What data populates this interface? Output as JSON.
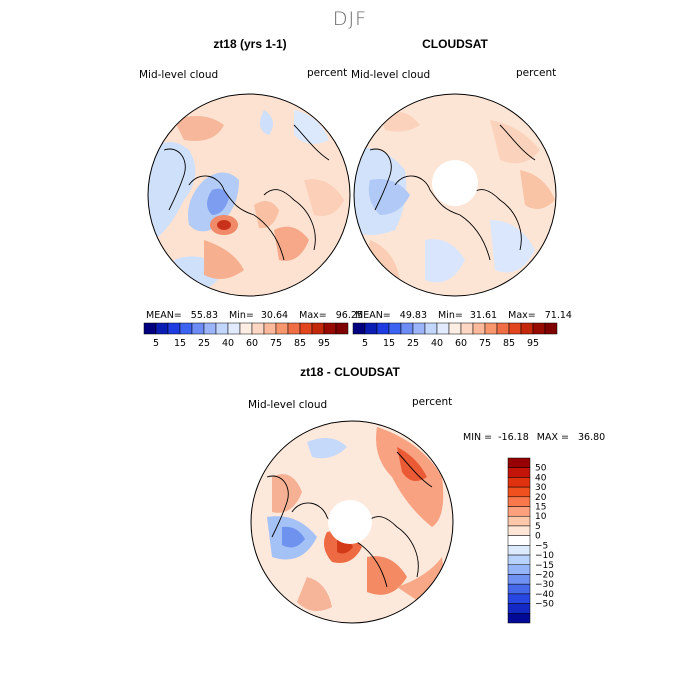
{
  "season_title": "DJF",
  "panels": [
    {
      "title": "zt18 (yrs 1-1)",
      "variable": "Mid-level cloud",
      "units": "percent",
      "stats": {
        "mean_label": "MEAN=",
        "mean": "55.83",
        "min_label": "Min=",
        "min": "30.64",
        "max_label": "Max=",
        "max": "96.25"
      }
    },
    {
      "title": "CLOUDSAT",
      "variable": "Mid-level cloud",
      "units": "percent",
      "stats": {
        "mean_label": "MEAN=",
        "mean": "49.83",
        "min_label": "Min=",
        "min": "31.61",
        "max_label": "Max=",
        "max": "71.14"
      }
    }
  ],
  "abs_colorbar": {
    "colors": [
      "#00007f",
      "#0a1eb4",
      "#1e3ce1",
      "#3c64f0",
      "#6e8cf5",
      "#9bb4fa",
      "#c3d7fc",
      "#e1ebfd",
      "#fdeee4",
      "#fdd7c3",
      "#fcb99b",
      "#f8966e",
      "#f06e46",
      "#e1461e",
      "#c3280a",
      "#960a00",
      "#7f0000"
    ],
    "labels": [
      "5",
      "15",
      "25",
      "40",
      "60",
      "75",
      "85",
      "95"
    ]
  },
  "diff_panel": {
    "title": "zt18 - CLOUDSAT",
    "variable": "Mid-level cloud",
    "units": "percent",
    "min_label": "MIN =",
    "min": "-16.18",
    "max_label": "MAX =",
    "max": "36.80"
  },
  "diff_colorbar": {
    "colors": [
      "#960000",
      "#c3140a",
      "#e1320f",
      "#f0501e",
      "#f8784b",
      "#fca07d",
      "#fdc8aa",
      "#fde6d7",
      "#ffffff",
      "#ddeafd",
      "#b9d2fb",
      "#96b4f8",
      "#6e91f2",
      "#4669eb",
      "#2846e1",
      "#1428c3",
      "#000a96"
    ],
    "labels": [
      "50",
      "40",
      "30",
      "20",
      "15",
      "10",
      "5",
      "0",
      "−5",
      "−10",
      "−15",
      "−20",
      "−30",
      "−40",
      "−50"
    ]
  }
}
